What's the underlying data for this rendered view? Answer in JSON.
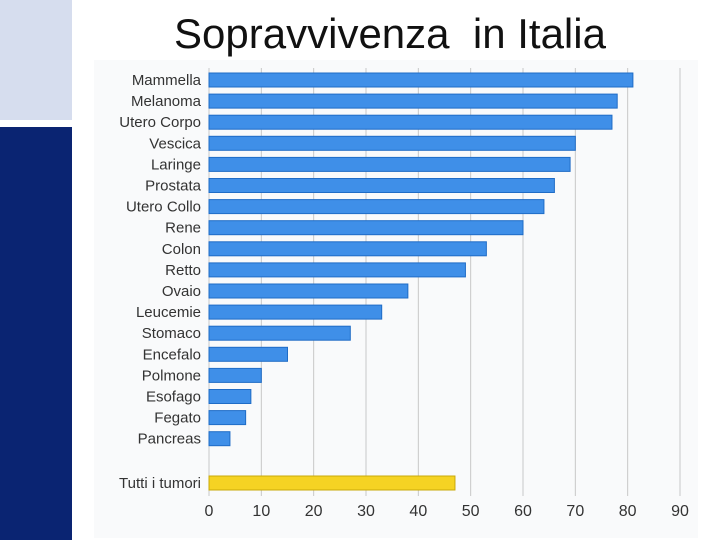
{
  "slide": {
    "title": "Sopravvivenza  in Italia"
  },
  "colors": {
    "bar": "#3f8fe8",
    "bar_edge": "#1f6cc6",
    "highlight_bar": "#f5d323",
    "highlight_edge": "#c9a90a",
    "side_bar": "#0a2472",
    "deco_block": "#d6ddee",
    "grid": "#c8c8c8",
    "text": "#333333"
  },
  "chart_data": {
    "type": "bar",
    "orientation": "horizontal",
    "title": "",
    "xlabel": "",
    "ylabel": "",
    "xlim": [
      0,
      90
    ],
    "xticks": [
      0,
      10,
      20,
      30,
      40,
      50,
      60,
      70,
      80,
      90
    ],
    "grid": true,
    "categories": [
      "Mammella",
      "Melanoma",
      "Utero Corpo",
      "Vescica",
      "Laringe",
      "Prostata",
      "Utero Collo",
      "Rene",
      "Colon",
      "Retto",
      "Ovaio",
      "Leucemie",
      "Stomaco",
      "Encefalo",
      "Polmone",
      "Esofago",
      "Fegato",
      "Pancreas"
    ],
    "values": [
      81,
      78,
      77,
      70,
      69,
      66,
      64,
      60,
      53,
      49,
      38,
      33,
      27,
      15,
      10,
      8,
      7,
      4
    ],
    "summary": {
      "category": "Tutti i tumori",
      "value": 47
    }
  }
}
